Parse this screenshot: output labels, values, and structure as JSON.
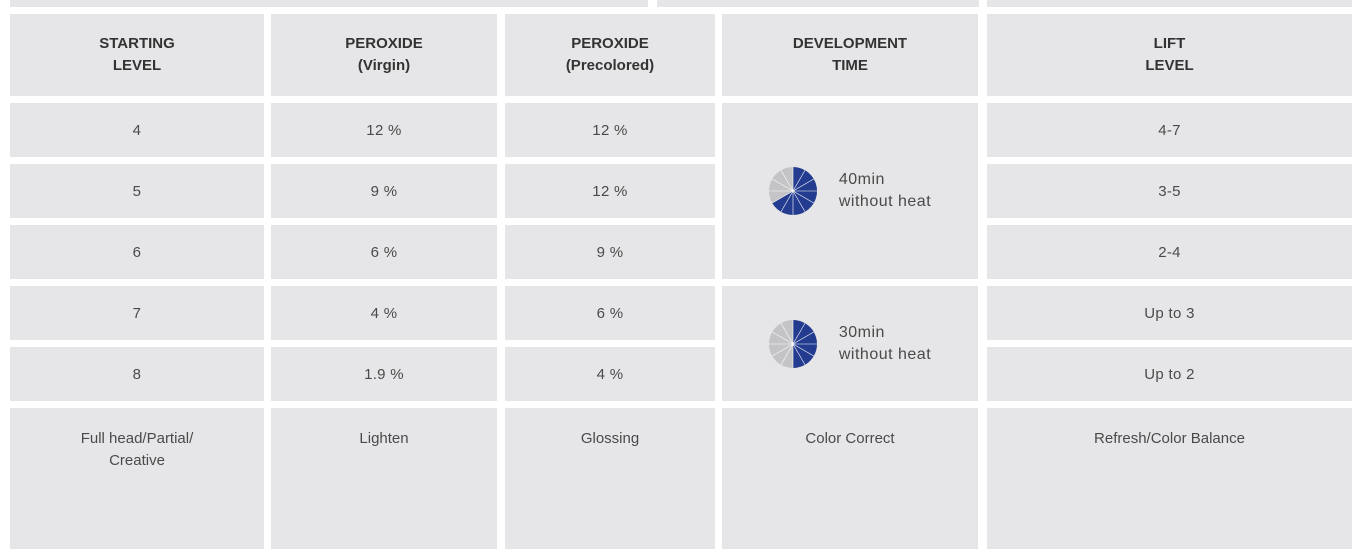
{
  "header": {
    "starting_level": [
      "STARTING",
      "LEVEL"
    ],
    "peroxide_virgin": [
      "PEROXIDE",
      "(Virgin)"
    ],
    "peroxide_precolored": [
      "PEROXIDE",
      "(Precolored)"
    ],
    "development_time": [
      "DEVELOPMENT",
      "TIME"
    ],
    "lift_level": [
      "LIFT",
      "LEVEL"
    ]
  },
  "rows": [
    {
      "starting": "4",
      "virgin": "12 %",
      "precolored": "12 %",
      "lift": "4-7"
    },
    {
      "starting": "5",
      "virgin": "9 %",
      "precolored": "12 %",
      "lift": "3-5"
    },
    {
      "starting": "6",
      "virgin": "6 %",
      "precolored": "9 %",
      "lift": "2-4"
    },
    {
      "starting": "7",
      "virgin": "4 %",
      "precolored": "6 %",
      "lift": "Up to 3"
    },
    {
      "starting": "8",
      "virgin": "1.9 %",
      "precolored": "4 %",
      "lift": "Up to 2"
    }
  ],
  "development": [
    {
      "line1": "40min",
      "line2": "without heat",
      "fraction": 0.667
    },
    {
      "line1": "30min",
      "line2": "without heat",
      "fraction": 0.5
    }
  ],
  "footer": {
    "starting": [
      "Full head/Partial/",
      "Creative"
    ],
    "virgin": "Lighten",
    "precolored": "Glossing",
    "development": "Color Correct",
    "lift": "Refresh/Color Balance"
  },
  "colors": {
    "cell_bg": "#e6e6e8",
    "pie_filled": "#233c8f",
    "pie_empty": "#c4c4c6"
  }
}
